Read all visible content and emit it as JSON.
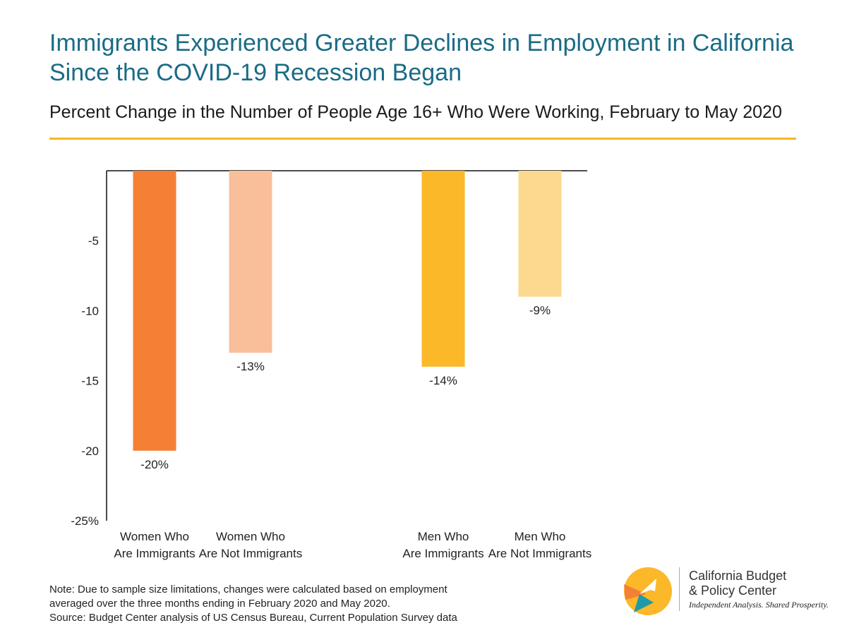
{
  "header": {
    "title": "Immigrants Experienced Greater Declines in Employment in California Since the COVID-19 Recession Began",
    "subtitle": "Percent Change in the Number of People Age 16+ Who Were Working, February to May 2020"
  },
  "chart_data": {
    "type": "bar",
    "title": "Immigrants Experienced Greater Declines in Employment in California Since the COVID-19 Recession Began",
    "subtitle": "Percent Change in the Number of People Age 16+ Who Were Working, February to May 2020",
    "xlabel": "",
    "ylabel": "",
    "ylim": [
      -25,
      0
    ],
    "yticks": [
      -5,
      -10,
      -15,
      -20,
      -25
    ],
    "ytick_labels": [
      "-5",
      "-10",
      "-15",
      "-20",
      "-25%"
    ],
    "grid": false,
    "categories": [
      [
        "Women Who",
        "Are Immigrants"
      ],
      [
        "Women Who",
        "Are Not Immigrants"
      ],
      [
        "Men Who",
        "Are Immigrants"
      ],
      [
        "Men Who",
        "Are Not Immigrants"
      ]
    ],
    "values": [
      -20,
      -13,
      -14,
      -9
    ],
    "data_labels": [
      "-20%",
      "-13%",
      "-14%",
      "-9%"
    ],
    "colors": [
      "#f47f35",
      "#f9bf9a",
      "#fbb829",
      "#fcd98e"
    ]
  },
  "note": {
    "lines": [
      "Note: Due to sample size limitations, changes were calculated based on employment",
      "averaged over the three months ending in February 2020 and May 2020.",
      "Source: Budget Center analysis of US Census Bureau, Current Population Survey data"
    ]
  },
  "logo": {
    "name_line1": "California Budget",
    "name_line2": "& Policy Center",
    "tagline": "Independent Analysis. Shared Prosperity.",
    "colors": {
      "orange": "#f47f35",
      "yellow": "#fbb829",
      "teal": "#1f9aa8"
    }
  },
  "colors": {
    "title": "#1a6b85",
    "rule": "#f4b725"
  }
}
